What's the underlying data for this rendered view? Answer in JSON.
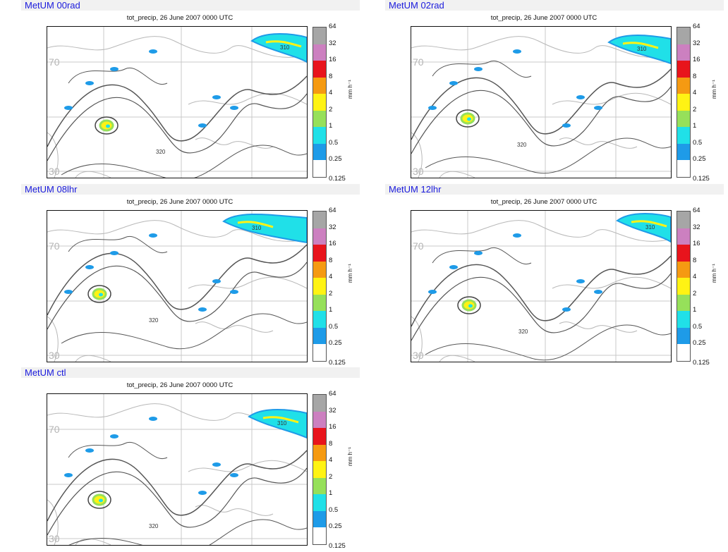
{
  "panels": [
    {
      "title": "MetUM 00rad",
      "subtitle": "tot_precip, 26 June 2007 0000 UTC"
    },
    {
      "title": "MetUM 02rad",
      "subtitle": "tot_precip, 26 June 2007 0000 UTC"
    },
    {
      "title": "MetUM 08lhr",
      "subtitle": "tot_precip, 26 June 2007 0000 UTC"
    },
    {
      "title": "MetUM 12lhr",
      "subtitle": "tot_precip, 26 June 2007 0000 UTC"
    },
    {
      "title": "MetUM ctl",
      "subtitle": "tot_precip, 26 June 2007 0000 UTC"
    }
  ],
  "map": {
    "lat_labels": [
      "70",
      "30"
    ],
    "contour_labels": [
      "310",
      "320"
    ]
  },
  "colorbar": {
    "levels": [
      "64",
      "32",
      "16",
      "8",
      "4",
      "2",
      "1",
      "0.5",
      "0.25",
      "0.125"
    ],
    "colors": [
      "#a6a6a6",
      "#cc80c0",
      "#e8141c",
      "#f59a12",
      "#fff314",
      "#96e05a",
      "#20e0e8",
      "#1e9be8",
      "#ffffff"
    ],
    "unit": "mm h⁻¹"
  }
}
